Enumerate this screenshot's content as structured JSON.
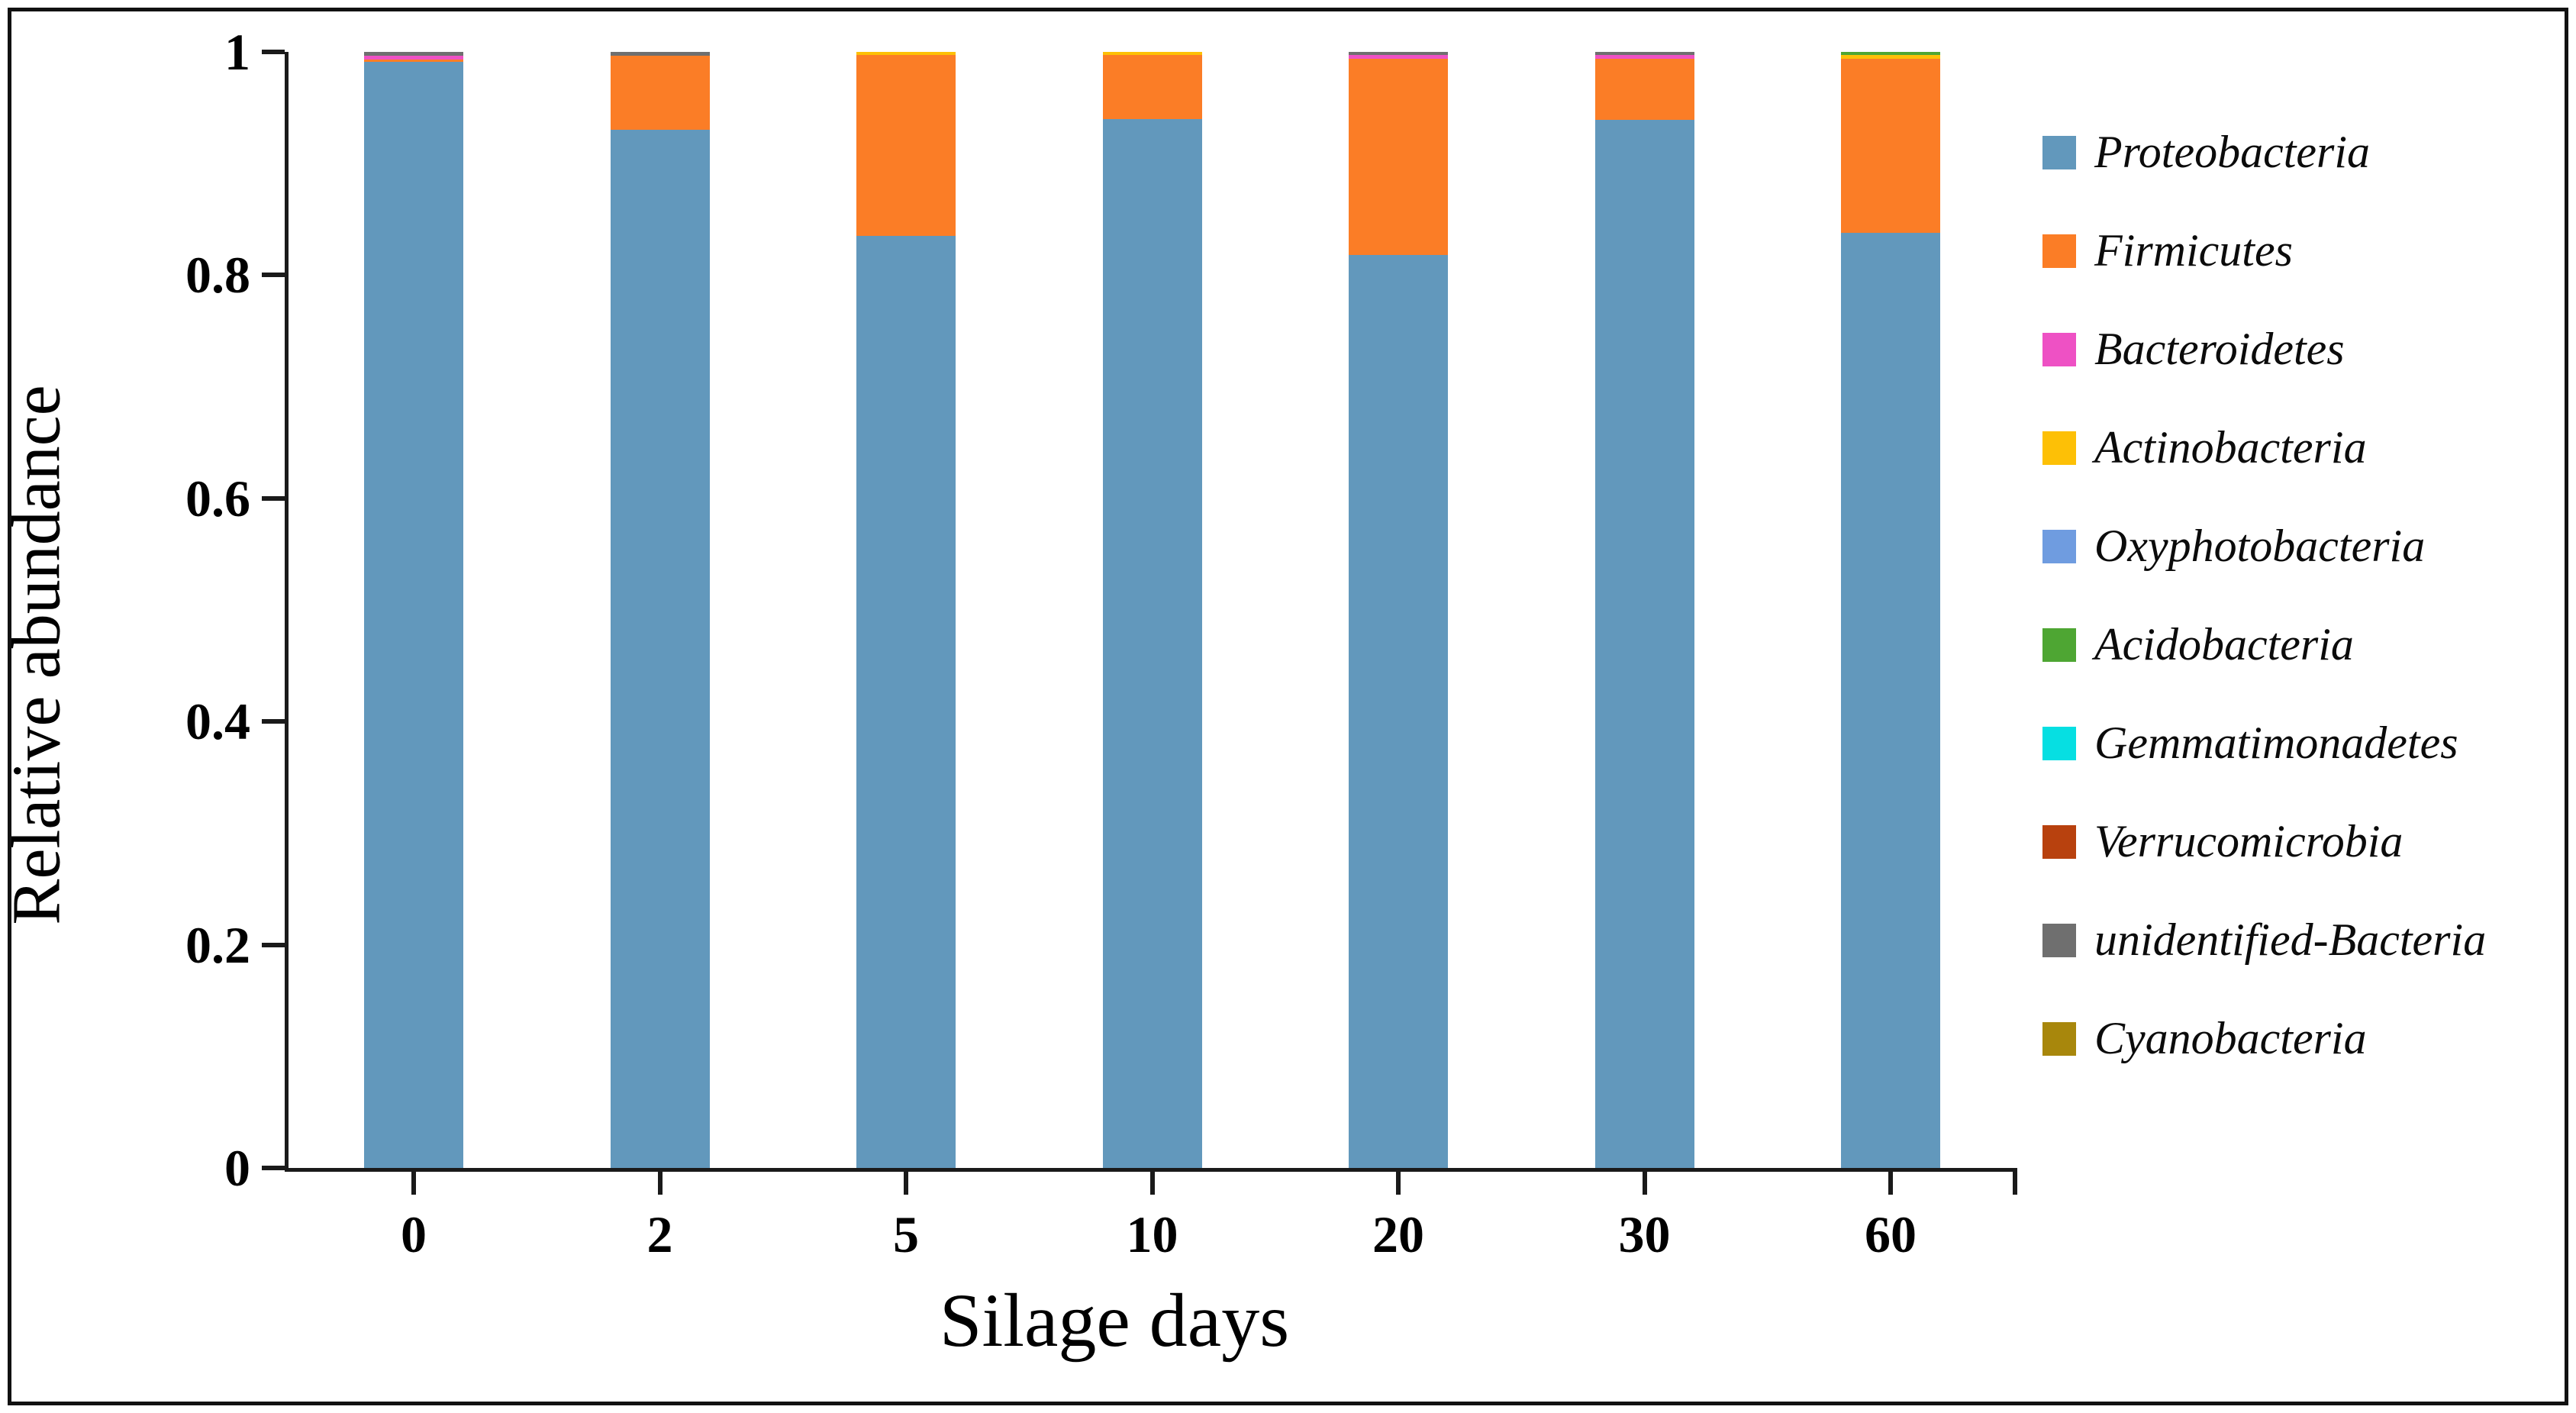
{
  "figure": {
    "background": "#ffffff",
    "frame_color": "#111111",
    "axis_color": "#1a1a1a"
  },
  "chart_data": {
    "type": "bar",
    "stacked": true,
    "title": "",
    "xlabel": "Silage days",
    "ylabel": "Relative abundance",
    "categories": [
      "0",
      "2",
      "5",
      "10",
      "20",
      "30",
      "60"
    ],
    "y_ticks": [
      "0",
      "0.2",
      "0.4",
      "0.6",
      "0.8",
      "1"
    ],
    "ylim": [
      0,
      1
    ],
    "grid": false,
    "legend_position": "right",
    "series": [
      {
        "name": "Proteobacteria",
        "color": "#6298bc",
        "values": [
          0.991,
          0.93,
          0.835,
          0.94,
          0.818,
          0.939,
          0.838
        ]
      },
      {
        "name": "Firmicutes",
        "color": "#fb7d26",
        "values": [
          0.002,
          0.0665,
          0.162,
          0.0575,
          0.176,
          0.055,
          0.156
        ]
      },
      {
        "name": "Bacteroidetes",
        "color": "#ee51c4",
        "values": [
          0.0035,
          0,
          0,
          0,
          0.0035,
          0.0035,
          0
        ]
      },
      {
        "name": "Actinobacteria",
        "color": "#fdc006",
        "values": [
          0,
          0,
          0.003,
          0.0025,
          0,
          0,
          0.003
        ]
      },
      {
        "name": "Oxyphotobacteria",
        "color": "#6f9ce0",
        "values": [
          0,
          0,
          0,
          0,
          0,
          0,
          0
        ]
      },
      {
        "name": "Acidobacteria",
        "color": "#4ea633",
        "values": [
          0,
          0,
          0,
          0,
          0,
          0,
          0.003
        ]
      },
      {
        "name": "Gemmatimonadetes",
        "color": "#06dfe2",
        "values": [
          0,
          0,
          0,
          0,
          0,
          0,
          0
        ]
      },
      {
        "name": "Verrucomicrobia",
        "color": "#b8410e",
        "values": [
          0,
          0,
          0,
          0,
          0,
          0,
          0
        ]
      },
      {
        "name": "unidentified-Bacteria",
        "color": "#6f6f6f",
        "values": [
          0.0035,
          0.0035,
          0,
          0,
          0.0025,
          0.0025,
          0
        ]
      },
      {
        "name": "Cyanobacteria",
        "color": "#a8870c",
        "values": [
          0,
          0,
          0,
          0,
          0,
          0,
          0
        ]
      }
    ]
  }
}
